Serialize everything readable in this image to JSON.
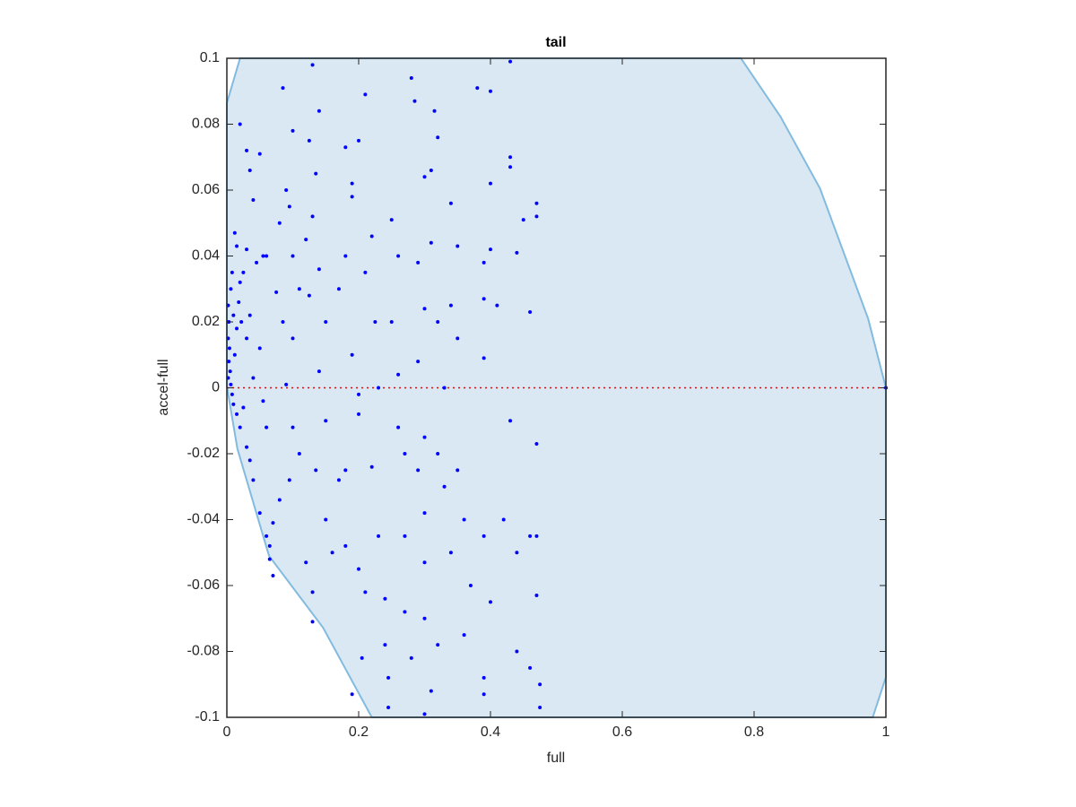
{
  "chart_data": {
    "type": "scatter",
    "title": "tail",
    "xlabel": "full",
    "ylabel": "accel-full",
    "xlim": [
      0,
      1
    ],
    "ylim": [
      -0.1,
      0.1
    ],
    "xticks": [
      0,
      0.2,
      0.4,
      0.6,
      0.8,
      1
    ],
    "yticks": [
      -0.1,
      -0.08,
      -0.06,
      -0.04,
      -0.02,
      0,
      0.02,
      0.04,
      0.06,
      0.08,
      0.1
    ],
    "region": {
      "fill": "#d9e8f3",
      "stroke": "#82bbdf",
      "x": [
        0,
        0.02,
        0.78,
        0.84,
        0.9,
        0.973,
        1,
        1,
        0.98,
        0.22,
        0.146,
        0.064,
        0.016,
        0
      ],
      "y": [
        0.0864,
        0.1,
        0.1,
        0.0823,
        0.0605,
        0.021,
        0,
        -0.0878,
        -0.1,
        -0.1,
        -0.0728,
        -0.051,
        -0.0185,
        0.0005
      ]
    },
    "reference_line": {
      "color": "#ff0000",
      "x": [
        0,
        1
      ],
      "y": [
        0,
        0
      ]
    },
    "points": {
      "color": "#0000ff",
      "x": [
        0.002,
        0.003,
        0.002,
        0.004,
        0.003,
        0.005,
        0.002,
        0.006,
        0.008,
        0.01,
        0.012,
        0.015,
        0.01,
        0.006,
        0.008,
        0.012,
        0.015,
        0.02,
        0.025,
        0.018,
        0.022,
        0.03,
        0.015,
        0.02,
        0.025,
        0.03,
        0.035,
        0.04,
        0.02,
        0.03,
        0.035,
        0.05,
        0.04,
        0.03,
        0.045,
        0.055,
        0.06,
        0.035,
        0.05,
        0.04,
        0.055,
        0.06,
        0.05,
        0.06,
        0.065,
        0.065,
        0.07,
        0.07,
        0.08,
        0.075,
        0.085,
        0.08,
        0.085,
        0.09,
        0.1,
        0.095,
        0.1,
        0.11,
        0.1,
        0.09,
        0.1,
        0.095,
        0.11,
        0.12,
        0.13,
        0.13,
        0.13,
        0.125,
        0.14,
        0.13,
        0.135,
        0.12,
        0.14,
        0.125,
        0.15,
        0.14,
        0.15,
        0.135,
        0.15,
        0.16,
        0.17,
        0.18,
        0.19,
        0.19,
        0.2,
        0.21,
        0.18,
        0.17,
        0.19,
        0.2,
        0.2,
        0.18,
        0.18,
        0.2,
        0.21,
        0.19,
        0.205,
        0.22,
        0.21,
        0.225,
        0.23,
        0.22,
        0.23,
        0.24,
        0.24,
        0.245,
        0.245,
        0.25,
        0.26,
        0.25,
        0.26,
        0.26,
        0.27,
        0.27,
        0.27,
        0.28,
        0.28,
        0.285,
        0.3,
        0.29,
        0.3,
        0.29,
        0.3,
        0.29,
        0.3,
        0.3,
        0.3,
        0.3,
        0.315,
        0.32,
        0.31,
        0.31,
        0.32,
        0.33,
        0.32,
        0.33,
        0.34,
        0.32,
        0.31,
        0.34,
        0.35,
        0.34,
        0.35,
        0.35,
        0.36,
        0.37,
        0.36,
        0.38,
        0.4,
        0.39,
        0.39,
        0.39,
        0.4,
        0.39,
        0.39,
        0.4,
        0.4,
        0.39,
        0.41,
        0.42,
        0.43,
        0.43,
        0.43,
        0.44,
        0.43,
        0.44,
        0.44,
        0.45,
        0.46,
        0.46,
        0.46,
        0.47,
        0.47,
        0.47,
        0.47,
        0.47,
        0.475,
        0.475,
        1
      ],
      "y": [
        0.025,
        0.02,
        0.015,
        0.012,
        0.008,
        0.005,
        0.003,
        0.001,
        -0.002,
        -0.005,
        0.01,
        0.018,
        0.022,
        0.03,
        0.035,
        0.047,
        0.043,
        0.032,
        0.035,
        0.026,
        0.02,
        0.015,
        -0.008,
        -0.012,
        -0.006,
        -0.018,
        -0.022,
        -0.028,
        0.08,
        0.072,
        0.066,
        0.071,
        0.057,
        0.042,
        0.038,
        0.04,
        0.04,
        0.022,
        0.012,
        0.003,
        -0.004,
        -0.012,
        -0.038,
        -0.045,
        -0.048,
        -0.052,
        -0.057,
        -0.041,
        -0.034,
        0.029,
        0.02,
        0.05,
        0.091,
        0.06,
        0.078,
        0.055,
        0.04,
        0.03,
        0.015,
        0.001,
        -0.012,
        -0.028,
        -0.02,
        -0.053,
        -0.062,
        -0.071,
        0.098,
        0.075,
        0.084,
        0.052,
        0.065,
        0.045,
        0.036,
        0.028,
        0.02,
        0.005,
        -0.01,
        -0.025,
        -0.04,
        -0.05,
        -0.028,
        0.073,
        0.062,
        0.058,
        0.075,
        0.089,
        0.04,
        0.03,
        0.01,
        -0.002,
        -0.008,
        -0.025,
        -0.048,
        -0.055,
        -0.062,
        -0.093,
        -0.082,
        0.046,
        0.035,
        0.02,
        0,
        -0.024,
        -0.045,
        -0.064,
        -0.078,
        -0.088,
        -0.097,
        0.051,
        0.04,
        0.02,
        0.004,
        -0.012,
        -0.02,
        -0.045,
        -0.068,
        -0.082,
        0.094,
        0.087,
        0.064,
        0.038,
        0.024,
        0.008,
        -0.015,
        -0.025,
        -0.038,
        -0.053,
        -0.07,
        -0.099,
        0.084,
        0.076,
        0.066,
        0.044,
        0.02,
        0,
        -0.02,
        -0.03,
        -0.05,
        -0.078,
        -0.092,
        0.056,
        0.043,
        0.025,
        0.015,
        -0.025,
        -0.04,
        -0.06,
        -0.075,
        0.091,
        0.09,
        0.038,
        0.009,
        -0.045,
        -0.065,
        -0.088,
        -0.093,
        0.062,
        0.042,
        0.027,
        0.025,
        -0.04,
        0.099,
        0.07,
        0.067,
        0.041,
        -0.01,
        -0.05,
        -0.08,
        0.051,
        0.023,
        -0.045,
        -0.085,
        0.056,
        0.052,
        -0.017,
        -0.045,
        -0.063,
        -0.097,
        -0.09,
        0
      ]
    }
  }
}
